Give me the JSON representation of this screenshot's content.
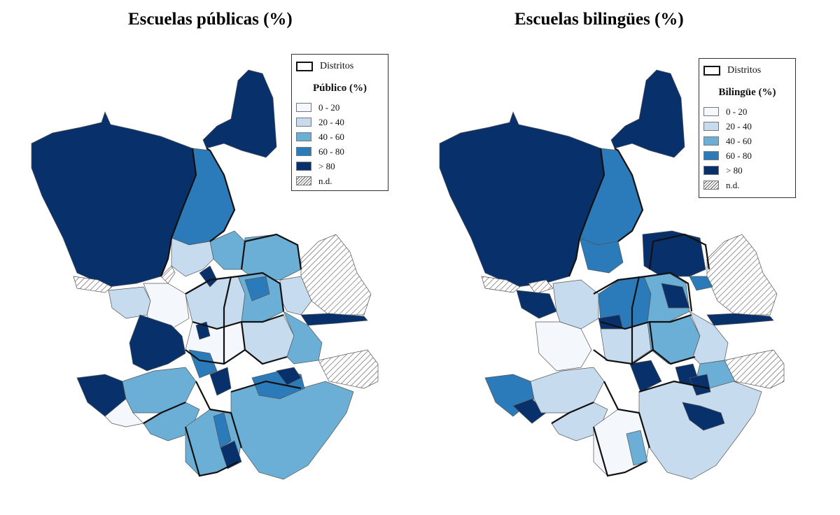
{
  "maps": [
    {
      "title": "Escuelas públicas (%)",
      "legend": {
        "districts_label": "Distritos",
        "heading": "Público (%)",
        "classes": [
          {
            "label": "0 - 20",
            "color": "#f4f8fd"
          },
          {
            "label": "20 - 40",
            "color": "#c7dbef"
          },
          {
            "label": "40 - 60",
            "color": "#6baed6"
          },
          {
            "label": "60 - 80",
            "color": "#2b7bba"
          },
          {
            "label": "> 80",
            "color": "#08306b"
          }
        ],
        "nd_label": "n.d."
      }
    },
    {
      "title": "Escuelas bilingües (%)",
      "legend": {
        "districts_label": "Distritos",
        "heading": "Bilingüe (%)",
        "classes": [
          {
            "label": "0 - 20",
            "color": "#f4f8fd"
          },
          {
            "label": "20 - 40",
            "color": "#c7dbef"
          },
          {
            "label": "40 - 60",
            "color": "#6baed6"
          },
          {
            "label": "60 - 80",
            "color": "#2b7bba"
          },
          {
            "label": "> 80",
            "color": "#08306b"
          }
        ],
        "nd_label": "n.d."
      }
    }
  ]
}
